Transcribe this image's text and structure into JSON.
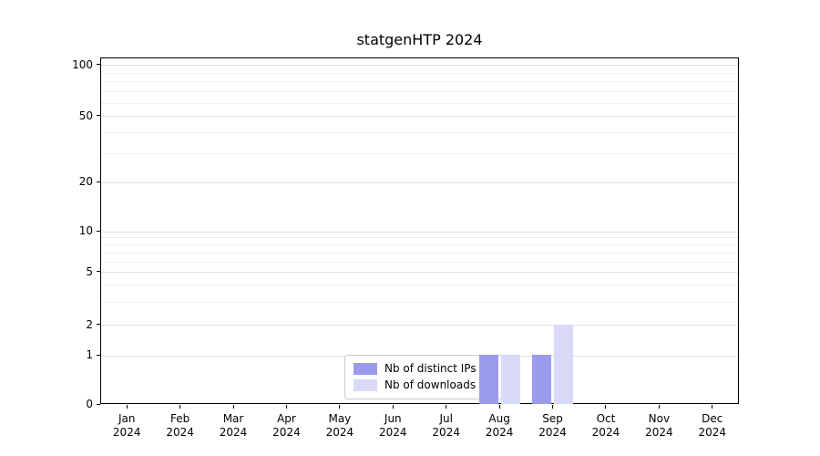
{
  "chart_data": {
    "type": "bar",
    "title": "statgenHTP 2024",
    "categories": [
      "Jan",
      "Feb",
      "Mar",
      "Apr",
      "May",
      "Jun",
      "Jul",
      "Aug",
      "Sep",
      "Oct",
      "Nov",
      "Dec"
    ],
    "category_year": "2024",
    "series": [
      {
        "name": "Nb of distinct IPs",
        "key": "distinct-ips",
        "color": "#9b9bee",
        "values": [
          0,
          0,
          0,
          0,
          0,
          0,
          0,
          1,
          1,
          0,
          0,
          0
        ]
      },
      {
        "name": "Nb of downloads",
        "key": "downloads",
        "color": "#d9d9f8",
        "values": [
          0,
          0,
          0,
          0,
          0,
          0,
          0,
          1,
          2,
          0,
          0,
          0
        ]
      }
    ],
    "yticks": [
      100,
      50,
      20,
      10,
      5,
      2,
      1,
      0
    ],
    "ylim": [
      0,
      110
    ],
    "yscale": "log-like",
    "grid": {
      "orientation": "horizontal",
      "major": [
        1,
        2,
        5,
        10,
        20,
        50,
        100
      ],
      "minor": [
        3,
        4,
        6,
        7,
        8,
        9,
        30,
        40,
        60,
        70,
        80,
        90
      ]
    },
    "legend": {
      "position": "bottom-center"
    }
  }
}
